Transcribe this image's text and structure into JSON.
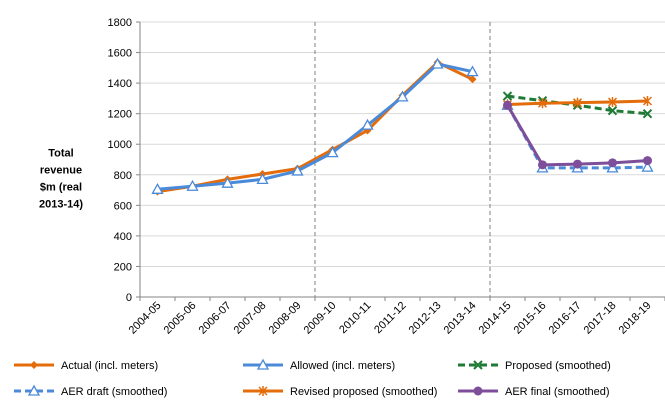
{
  "chart_data": {
    "type": "line",
    "title": "",
    "xlabel": "",
    "ylabel": [
      "Total",
      "revenue",
      "$m (real",
      "2013-14)"
    ],
    "ylim": [
      0,
      1800
    ],
    "yticks": [
      0,
      200,
      400,
      600,
      800,
      1000,
      1200,
      1400,
      1600,
      1800
    ],
    "grid": "horizontal",
    "legend_position": "bottom",
    "categories": [
      "2004-05",
      "2005-06",
      "2006-07",
      "2007-08",
      "2008-09",
      "2009-10",
      "2010-11",
      "2011-12",
      "2012-13",
      "2013-14",
      "2014-15",
      "2015-16",
      "2016-17",
      "2017-18",
      "2018-19"
    ],
    "period_dividers": [
      "2008-09|2009-10",
      "2013-14|2014-15"
    ],
    "series": [
      {
        "name": "Actual (incl. meters)",
        "color": "#e46c0a",
        "dash": "solid",
        "marker": "diamond",
        "values": [
          690,
          725,
          770,
          805,
          840,
          965,
          1090,
          1320,
          1535,
          1425,
          null,
          null,
          null,
          null,
          null
        ]
      },
      {
        "name": "Allowed (incl. meters)",
        "color": "#4a8ad8",
        "dash": "solid",
        "marker": "triangle",
        "values": [
          705,
          725,
          745,
          770,
          825,
          945,
          1125,
          1310,
          1525,
          1475,
          null,
          null,
          null,
          null,
          null
        ]
      },
      {
        "name": "Proposed (smoothed)",
        "color": "#1e7a34",
        "dash": "dashed",
        "marker": "x",
        "values": [
          null,
          null,
          null,
          null,
          null,
          null,
          null,
          null,
          null,
          null,
          1315,
          1285,
          1255,
          1220,
          1200
        ]
      },
      {
        "name": "AER draft (smoothed)",
        "color": "#4a8ad8",
        "dash": "dashed",
        "marker": "triangle",
        "values": [
          null,
          null,
          null,
          null,
          null,
          null,
          null,
          null,
          null,
          null,
          1255,
          845,
          845,
          845,
          850
        ]
      },
      {
        "name": "Revised proposed (smoothed)",
        "color": "#e46c0a",
        "dash": "solid",
        "marker": "asterisk",
        "values": [
          null,
          null,
          null,
          null,
          null,
          null,
          null,
          null,
          null,
          null,
          1260,
          1268,
          1272,
          1276,
          1283
        ]
      },
      {
        "name": "AER final (smoothed)",
        "color": "#7d4e9a",
        "dash": "solid",
        "marker": "circle",
        "values": [
          null,
          null,
          null,
          null,
          null,
          null,
          null,
          null,
          null,
          null,
          1255,
          865,
          870,
          878,
          893
        ]
      }
    ]
  }
}
